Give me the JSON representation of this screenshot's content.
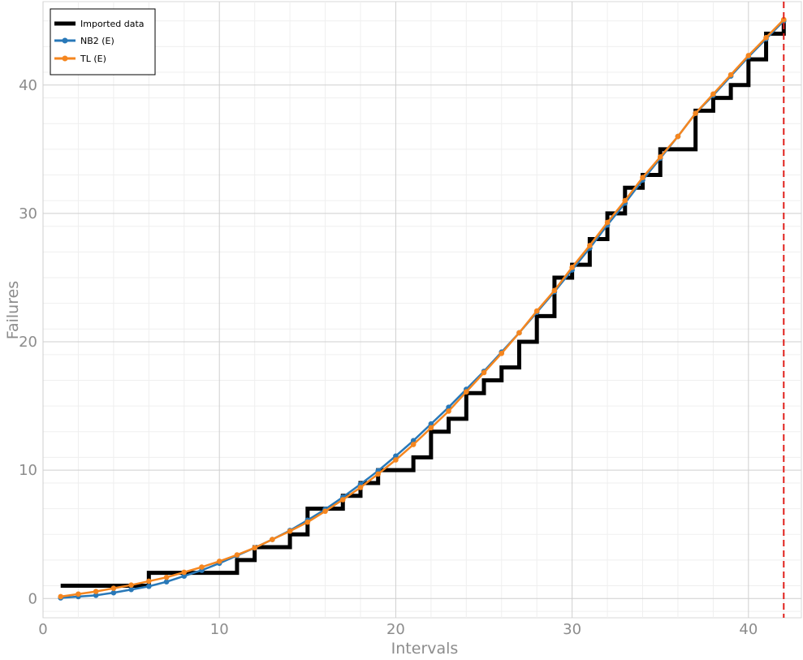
{
  "chart_data": {
    "type": "line",
    "title": "",
    "xlabel": "Intervals",
    "ylabel": "Failures",
    "xlim": [
      0,
      43
    ],
    "ylim": [
      -1.5,
      46.5
    ],
    "xticks": [
      "0",
      "10",
      "20",
      "30",
      "40"
    ],
    "yticks": [
      "0",
      "10",
      "20",
      "30",
      "40"
    ],
    "grid": true,
    "legend_position": "top-left",
    "vline_x": 42,
    "series": [
      {
        "name": "Imported data",
        "kind": "step",
        "color": "#000000",
        "x": [
          1,
          2,
          3,
          4,
          5,
          6,
          7,
          8,
          9,
          10,
          11,
          12,
          13,
          14,
          15,
          16,
          17,
          18,
          19,
          20,
          21,
          22,
          23,
          24,
          25,
          26,
          27,
          28,
          29,
          30,
          31,
          32,
          33,
          34,
          35,
          36,
          37,
          38,
          39,
          40,
          41,
          42
        ],
        "values": [
          1,
          1,
          1,
          1,
          1,
          2,
          2,
          2,
          2,
          2,
          3,
          4,
          4,
          5,
          7,
          7,
          8,
          9,
          10,
          10,
          11,
          13,
          14,
          16,
          17,
          18,
          20,
          22,
          25,
          26,
          28,
          30,
          32,
          33,
          35,
          35,
          38,
          39,
          40,
          42,
          44,
          45
        ]
      },
      {
        "name": "NB2 (E)",
        "kind": "line-marker",
        "color": "#2878b8",
        "x": [
          1,
          2,
          3,
          4,
          5,
          6,
          7,
          8,
          9,
          10,
          11,
          12,
          13,
          14,
          15,
          16,
          17,
          18,
          19,
          20,
          21,
          22,
          23,
          24,
          25,
          26,
          27,
          28,
          29,
          30,
          31,
          32,
          33,
          34,
          35,
          36,
          37,
          38,
          39,
          40,
          41,
          42
        ],
        "values": [
          0.05,
          0.15,
          0.25,
          0.45,
          0.7,
          0.95,
          1.3,
          1.75,
          2.2,
          2.75,
          3.35,
          3.95,
          4.6,
          5.3,
          6.1,
          6.95,
          7.9,
          8.9,
          9.95,
          11.1,
          12.3,
          13.6,
          14.9,
          16.3,
          17.7,
          19.2,
          20.7,
          22.3,
          23.9,
          25.6,
          27.3,
          29.1,
          30.8,
          32.6,
          34.3,
          36.0,
          37.8,
          39.2,
          40.7,
          42.2,
          43.6,
          45.0
        ]
      },
      {
        "name": "TL (E)",
        "kind": "line-marker",
        "color": "#f5861f",
        "x": [
          1,
          2,
          3,
          4,
          5,
          6,
          7,
          8,
          9,
          10,
          11,
          12,
          13,
          14,
          15,
          16,
          17,
          18,
          19,
          20,
          21,
          22,
          23,
          24,
          25,
          26,
          27,
          28,
          29,
          30,
          31,
          32,
          33,
          34,
          35,
          36,
          37,
          38,
          39,
          40,
          41,
          42
        ],
        "values": [
          0.15,
          0.35,
          0.55,
          0.8,
          1.05,
          1.35,
          1.65,
          2.05,
          2.45,
          2.9,
          3.4,
          3.95,
          4.6,
          5.25,
          5.95,
          6.8,
          7.7,
          8.65,
          9.7,
          10.8,
          12.0,
          13.3,
          14.6,
          16.1,
          17.6,
          19.1,
          20.7,
          22.4,
          24.0,
          25.8,
          27.5,
          29.3,
          31.0,
          32.8,
          34.4,
          36.0,
          37.8,
          39.3,
          40.8,
          42.3,
          43.7,
          45.1
        ]
      }
    ]
  }
}
